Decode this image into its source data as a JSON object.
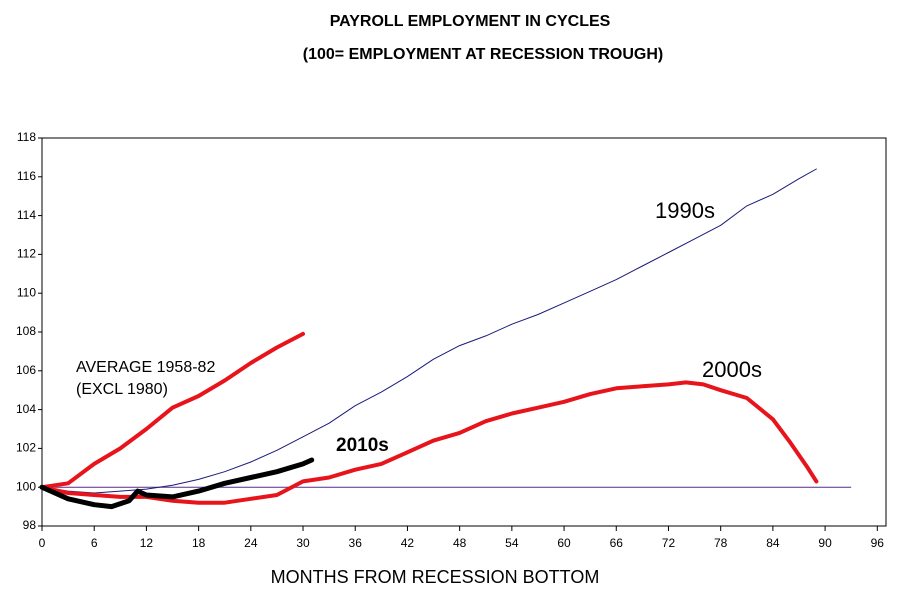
{
  "chart_data": {
    "type": "line",
    "title": "PAYROLL EMPLOYMENT IN CYCLES",
    "subtitle": "(100= EMPLOYMENT AT RECESSION TROUGH)",
    "x_label": "MONTHS FROM RECESSION BOTTOM",
    "xlim": [
      0,
      97
    ],
    "ylim": [
      98,
      118
    ],
    "xticks": [
      0,
      6,
      12,
      18,
      24,
      30,
      36,
      42,
      48,
      54,
      60,
      66,
      72,
      78,
      84,
      90,
      96
    ],
    "yticks": [
      98,
      100,
      102,
      104,
      106,
      108,
      110,
      112,
      114,
      116,
      118
    ],
    "reference_line": {
      "y": 100,
      "x": [
        0,
        93
      ],
      "color": "#5a2a8a"
    },
    "series": [
      {
        "name": [
          "1990s"
        ],
        "color": "#1a1a7a",
        "width": 1,
        "x": [
          0,
          3,
          6,
          9,
          12,
          15,
          18,
          21,
          24,
          27,
          30,
          33,
          36,
          39,
          42,
          45,
          48,
          51,
          54,
          57,
          60,
          63,
          66,
          69,
          72,
          75,
          78,
          81,
          84,
          87,
          89
        ],
        "values": [
          100,
          99.8,
          99.7,
          99.8,
          99.9,
          100.1,
          100.4,
          100.8,
          101.3,
          101.9,
          102.6,
          103.3,
          104.2,
          104.9,
          105.7,
          106.6,
          107.3,
          107.8,
          108.4,
          108.9,
          109.5,
          110.1,
          110.7,
          111.4,
          112.1,
          112.8,
          113.5,
          114.5,
          115.1,
          115.9,
          116.4
        ]
      },
      {
        "name": [
          "AVERAGE 1958-82",
          "(EXCL 1980)"
        ],
        "color": "#e8141b",
        "width": 4,
        "x": [
          0,
          3,
          6,
          9,
          12,
          15,
          18,
          21,
          24,
          27,
          30
        ],
        "values": [
          100,
          100.2,
          101.2,
          102,
          103,
          104.1,
          104.7,
          105.5,
          106.4,
          107.2,
          107.9
        ]
      },
      {
        "name": [
          "2000s"
        ],
        "color": "#e8141b",
        "width": 4,
        "x": [
          0,
          3,
          6,
          9,
          12,
          15,
          18,
          21,
          24,
          27,
          30,
          33,
          36,
          39,
          42,
          45,
          48,
          51,
          54,
          57,
          60,
          63,
          66,
          69,
          72,
          74,
          76,
          78,
          81,
          84,
          86,
          88,
          89
        ],
        "values": [
          100,
          99.7,
          99.6,
          99.5,
          99.5,
          99.3,
          99.2,
          99.2,
          99.4,
          99.6,
          100.3,
          100.5,
          100.9,
          101.2,
          101.8,
          102.4,
          102.8,
          103.4,
          103.8,
          104.1,
          104.4,
          104.8,
          105.1,
          105.2,
          105.3,
          105.4,
          105.3,
          105,
          104.6,
          103.5,
          102.3,
          101,
          100.3
        ]
      },
      {
        "name": [
          "2010s"
        ],
        "color": "#000000",
        "width": 5,
        "x": [
          0,
          3,
          6,
          8,
          10,
          11,
          12,
          15,
          18,
          21,
          24,
          27,
          30,
          31
        ],
        "values": [
          100,
          99.4,
          99.1,
          99,
          99.3,
          99.8,
          99.6,
          99.5,
          99.8,
          100.2,
          100.5,
          100.8,
          101.2,
          101.4
        ]
      }
    ]
  }
}
